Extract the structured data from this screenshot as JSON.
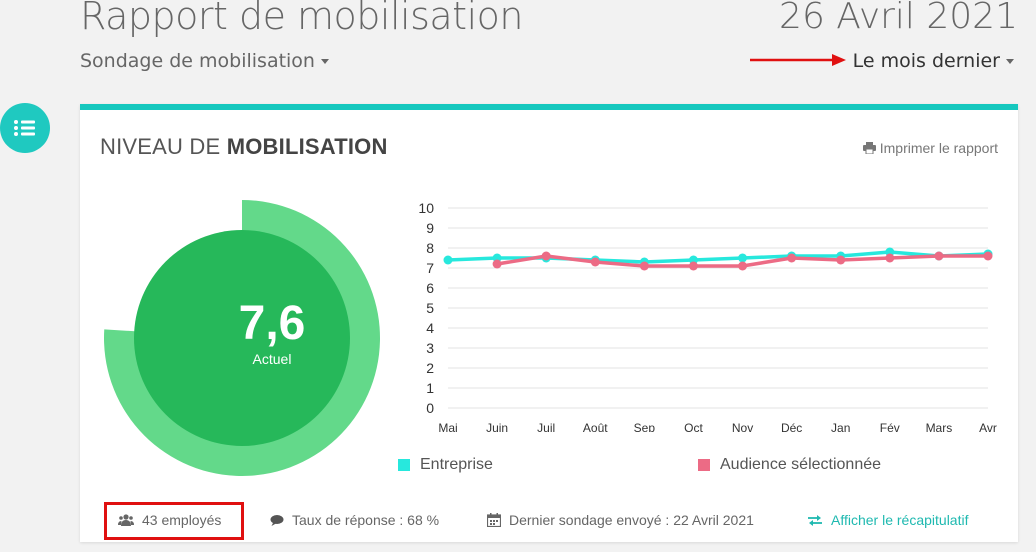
{
  "header": {
    "title": "Rapport de mobilisation",
    "date": "26 Avril 2021",
    "survey": "Sondage de mobilisation",
    "period": "Le mois dernier"
  },
  "card": {
    "title_prefix": "NIVEAU DE ",
    "title_bold": "MOBILISATION",
    "print_label": "Imprimer le rapport"
  },
  "gauge": {
    "value": "7,6",
    "label": "Actuel",
    "score": 7.6,
    "max": 10
  },
  "colors": {
    "accent": "#16c8be",
    "gauge_outer": "#63d98a",
    "gauge_inner": "#26b85a",
    "series_entreprise": "#27e8dd",
    "series_audience": "#ec6b85",
    "annotation_red": "#e01010"
  },
  "chart_data": {
    "type": "line",
    "categories": [
      "Mai",
      "Juin",
      "Juil",
      "Août",
      "Sep",
      "Oct",
      "Nov",
      "Déc",
      "Jan",
      "Fév",
      "Mars",
      "Avr"
    ],
    "ylim": [
      0,
      10
    ],
    "yticks": [
      "0",
      "1",
      "2",
      "3",
      "4",
      "5",
      "6",
      "7",
      "8",
      "9",
      "10"
    ],
    "series": [
      {
        "name": "Entreprise",
        "values": [
          7.4,
          7.5,
          7.5,
          7.4,
          7.3,
          7.4,
          7.5,
          7.6,
          7.6,
          7.8,
          7.6,
          7.7
        ]
      },
      {
        "name": "Audience sélectionnée",
        "values": [
          null,
          7.2,
          7.6,
          7.3,
          7.1,
          7.1,
          7.1,
          7.5,
          7.4,
          7.5,
          7.6,
          7.6
        ]
      }
    ]
  },
  "footer": {
    "employees": "43 employés",
    "response_rate": "Taux de réponse : 68 %",
    "last_survey": "Dernier sondage envoyé : 22 Avril 2021",
    "recap": "Afficher le récapitulatif"
  }
}
